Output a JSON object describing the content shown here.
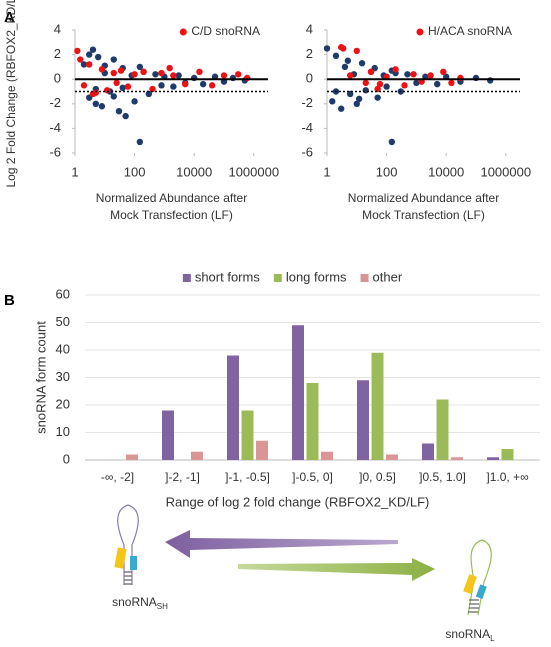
{
  "chart_data": [
    {
      "type": "scatter",
      "panel_label": "A",
      "ylabel": "Log 2 Fold Change (RBFOX2_KD/LF)",
      "xlabel": [
        "Normalized Abundance after",
        "Mock Transfection (LF)"
      ],
      "xscale": "log",
      "xlim": [
        1,
        3000000
      ],
      "xticks": [
        1,
        100,
        10000,
        1000000
      ],
      "ylim": [
        -6,
        4
      ],
      "yticks": [
        4,
        2,
        0,
        -2,
        -4,
        -6
      ],
      "reference_lines": [
        0,
        -1
      ],
      "legend": "upper right",
      "series": [
        {
          "color": "#1f3b6b",
          "x": [
            2,
            3,
            4,
            5,
            6,
            8,
            10,
            15,
            20,
            30,
            40,
            50,
            80,
            100,
            150,
            200,
            300,
            500,
            800,
            1000,
            2000,
            3000,
            5000,
            10000,
            20000,
            50000,
            100000,
            200000,
            500000,
            3,
            5,
            10,
            20,
            40,
            150
          ],
          "values": [
            1.2,
            -1.5,
            2.4,
            -0.8,
            1.8,
            -2.2,
            0.5,
            -1.0,
            1.6,
            -2.6,
            0.9,
            -3.0,
            0.3,
            -1.8,
            -5.1,
            0.6,
            -1.2,
            0.4,
            -0.5,
            0.2,
            -0.6,
            0.3,
            -0.3,
            0.1,
            -0.4,
            0.2,
            -0.2,
            0.1,
            -0.1,
            2.0,
            -2.0,
            1.1,
            -1.4,
            -0.7,
            1.0
          ]
        },
        {
          "name": "C/D snoRNA",
          "color": "#ee1111",
          "x": [
            1.2,
            2,
            3,
            5,
            8,
            12,
            20,
            35,
            60,
            100,
            200,
            400,
            800,
            2000,
            5000,
            15000,
            40000,
            100000,
            300000,
            600000,
            1.5,
            4,
            25,
            1500
          ],
          "values": [
            2.3,
            -0.5,
            1.2,
            -1.1,
            0.8,
            -0.9,
            0.5,
            0.7,
            -0.6,
            0.4,
            0.6,
            -0.8,
            0.5,
            0.3,
            -0.4,
            0.6,
            -0.5,
            0.3,
            0.4,
            0.1,
            1.6,
            -1.2,
            -0.3,
            0.9
          ]
        }
      ]
    },
    {
      "type": "scatter",
      "xlabel": [
        "Normalized Abundance after",
        "Mock Transfection (LF)"
      ],
      "xscale": "log",
      "xlim": [
        1,
        3000000
      ],
      "xticks": [
        1,
        100,
        10000,
        1000000
      ],
      "ylim": [
        -6,
        4
      ],
      "yticks": [
        4,
        2,
        0,
        -2,
        -4,
        -6
      ],
      "reference_lines": [
        0,
        -1
      ],
      "legend": "upper right",
      "series": [
        {
          "color": "#1f3b6b",
          "x": [
            1,
            1.5,
            2,
            3,
            4,
            6,
            8,
            10,
            15,
            20,
            30,
            50,
            80,
            100,
            150,
            200,
            300,
            500,
            1000,
            2000,
            5000,
            10000,
            30000,
            100000,
            300000,
            2,
            5,
            12,
            40,
            150
          ],
          "values": [
            2.5,
            -1.8,
            1.9,
            -2.4,
            1.0,
            -1.2,
            0.4,
            -2.0,
            1.3,
            -0.9,
            0.6,
            -1.5,
            0.3,
            -0.6,
            -5.1,
            0.5,
            -1.0,
            0.4,
            -0.3,
            0.2,
            -0.4,
            0.2,
            -0.2,
            0.1,
            -0.1,
            -1.0,
            1.5,
            -1.6,
            0.9,
            0.7
          ]
        },
        {
          "name": "H/ACA snoRNA",
          "color": "#ee1111",
          "x": [
            3,
            6,
            10,
            20,
            30,
            60,
            100,
            200,
            400,
            800,
            1500,
            3000,
            8000,
            15000,
            30000,
            3.5,
            50
          ],
          "values": [
            2.6,
            0.3,
            2.3,
            -0.3,
            0.6,
            -0.4,
            0.2,
            0.8,
            -0.5,
            0.4,
            -0.2,
            0.3,
            0.6,
            -0.3,
            0.1,
            2.5,
            -0.8
          ]
        }
      ]
    },
    {
      "type": "bar",
      "panel_label": "B",
      "ylabel": "snoRNA form count",
      "xlabel": "Range of log 2 fold change (RBFOX2_KD/LF)",
      "categories": [
        "-∞, -2]",
        "]-2, -1]",
        "]-1, -0.5]",
        "]-0.5, 0]",
        "]0, 0.5]",
        "]0.5, 1.0]",
        "]1.0, +∞"
      ],
      "ylim": [
        0,
        60
      ],
      "yticks": [
        0,
        10,
        20,
        30,
        40,
        50,
        60
      ],
      "grid": true,
      "legend": "top",
      "series": [
        {
          "name": "short forms",
          "color": "#8064a2",
          "values": [
            0,
            18,
            38,
            49,
            29,
            6,
            1
          ]
        },
        {
          "name": "long forms",
          "color": "#9bbb59",
          "values": [
            0,
            0,
            18,
            28,
            39,
            22,
            4
          ]
        },
        {
          "name": "other",
          "color": "#d99694",
          "values": [
            2,
            3,
            7,
            3,
            2,
            1,
            0
          ]
        }
      ]
    }
  ],
  "diagram": {
    "short": {
      "text": "snoRNA",
      "sub": "SH"
    },
    "long": {
      "text": "snoRNA",
      "sub": "L"
    }
  }
}
